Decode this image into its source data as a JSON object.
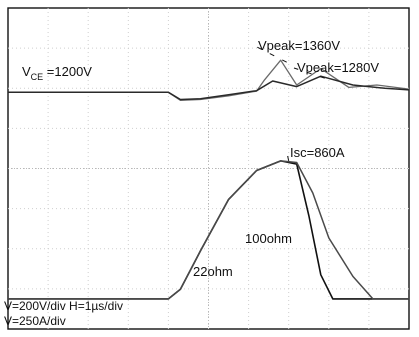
{
  "chart_data": {
    "type": "line",
    "grid": true,
    "divisions": {
      "x": 10,
      "y": 8
    },
    "scale_text": [
      "V=200V/div  H=1µs/div",
      "V=250A/div"
    ],
    "x_per_div_us": 1,
    "voltage": {
      "label": "V",
      "sub": "CE",
      "value_text": " =1200V",
      "volts_per_div": 200,
      "baseline_v": 1200,
      "baseline_div_from_top": 2.1,
      "series": [
        {
          "label": "Vpeak=1360V",
          "peak_v": 1360,
          "t": [
            0,
            4.0,
            4.3,
            4.8,
            5.5,
            6.2,
            6.4,
            6.8,
            7.2,
            7.8,
            8.5,
            9.2,
            10
          ],
          "v": [
            1200,
            1200,
            1160,
            1164,
            1182,
            1206,
            1262,
            1360,
            1236,
            1318,
            1224,
            1236,
            1216
          ]
        },
        {
          "label": "Vpeak=1280V",
          "peak_v": 1280,
          "t": [
            0,
            4.0,
            4.3,
            4.8,
            5.5,
            6.2,
            6.6,
            7.2,
            7.8,
            8.6,
            9.4,
            10
          ],
          "v": [
            1200,
            1200,
            1164,
            1168,
            1188,
            1208,
            1256,
            1228,
            1280,
            1236,
            1220,
            1212
          ]
        }
      ]
    },
    "current": {
      "amps_per_div": 250,
      "zero_div_from_top": 7.25,
      "peak_label": "Isc=860A",
      "peak_a": 860,
      "series": [
        {
          "label": "22ohm",
          "t": [
            0,
            4.0,
            4.3,
            4.8,
            5.5,
            6.2,
            6.8,
            7.2,
            7.5,
            7.8,
            8.1,
            10
          ],
          "a": [
            0,
            0,
            60,
            300,
            620,
            800,
            860,
            840,
            520,
            150,
            0,
            0
          ]
        },
        {
          "label": "100ohm",
          "t": [
            0,
            4.0,
            4.3,
            4.8,
            5.5,
            6.2,
            6.8,
            7.2,
            7.6,
            8.0,
            8.6,
            9.1,
            10
          ],
          "a": [
            0,
            0,
            60,
            300,
            620,
            800,
            860,
            850,
            660,
            380,
            140,
            0,
            0
          ]
        }
      ]
    }
  }
}
